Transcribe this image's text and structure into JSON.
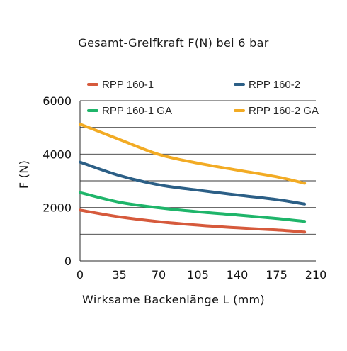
{
  "chart_data": {
    "type": "line",
    "title": "Gesamt-Greifkraft F(N) bei 6 bar",
    "xlabel": "Wirksame Backenlänge L (mm)",
    "ylabel": "F (N)",
    "xlim": [
      0,
      210
    ],
    "ylim": [
      0,
      6000
    ],
    "xticks": [
      0,
      35,
      70,
      105,
      140,
      175,
      210
    ],
    "yticks": [
      0,
      2000,
      4000,
      6000
    ],
    "ytick_labels": [
      "0",
      "2000",
      "4000",
      "6000"
    ],
    "xtick_labels": [
      "0",
      "35",
      "70",
      "105",
      "140",
      "175",
      "210"
    ],
    "grid": "horizontal",
    "legend_position": "top",
    "series": [
      {
        "name": "RPP 160-1",
        "color": "#d65a3c",
        "x": [
          0,
          35,
          70,
          105,
          140,
          175,
          200
        ],
        "values": [
          1900,
          1650,
          1470,
          1340,
          1240,
          1160,
          1080
        ]
      },
      {
        "name": "RPP 160-2",
        "color": "#2c5f86",
        "x": [
          0,
          35,
          70,
          105,
          140,
          175,
          200
        ],
        "values": [
          3700,
          3200,
          2850,
          2650,
          2470,
          2300,
          2130
        ]
      },
      {
        "name": "RPP 160-1 GA",
        "color": "#1fb56a",
        "x": [
          0,
          35,
          70,
          105,
          140,
          175,
          200
        ],
        "values": [
          2560,
          2200,
          1990,
          1840,
          1720,
          1590,
          1480
        ]
      },
      {
        "name": "RPP 160-2 GA",
        "color": "#f2ab24",
        "x": [
          0,
          35,
          70,
          105,
          140,
          175,
          200
        ],
        "values": [
          5120,
          4550,
          3990,
          3660,
          3400,
          3150,
          2910
        ]
      }
    ]
  }
}
